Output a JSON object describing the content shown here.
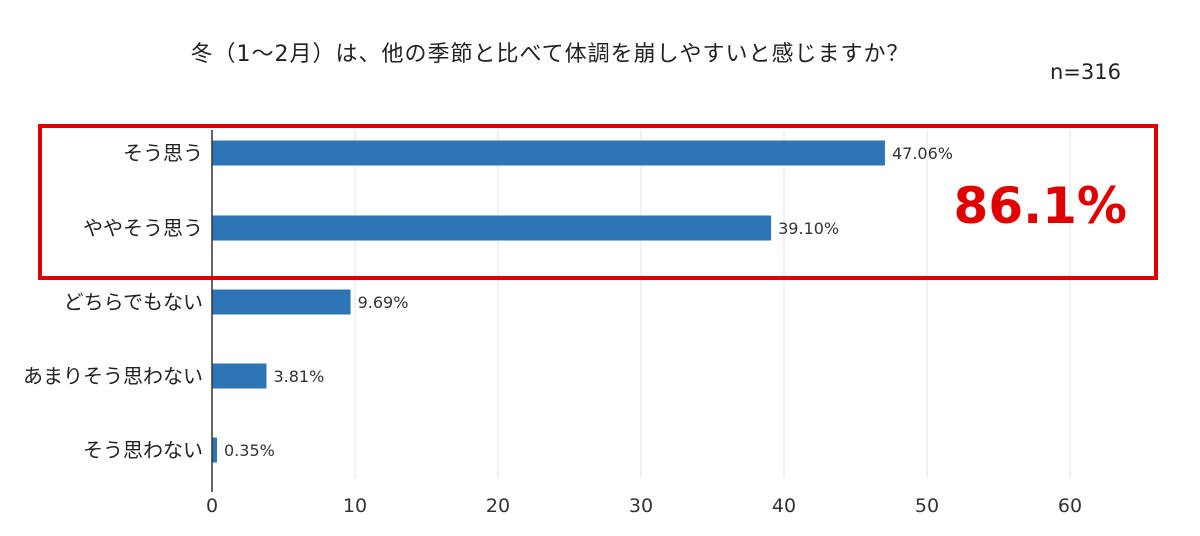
{
  "chart_data": {
    "type": "bar",
    "orientation": "horizontal",
    "title": "冬（1〜2月）は、他の季節と比べて体調を崩しやすいと感じますか？",
    "note": "n=316",
    "categories": [
      "そう思う",
      "ややそう思う",
      "どちらでもない",
      "あまりそう思わない",
      "そう思わない"
    ],
    "values": [
      47.06,
      39.1,
      9.69,
      3.81,
      0.35
    ],
    "value_labels": [
      "47.06%",
      "39.10%",
      "9.69%",
      "3.81%",
      "0.35%"
    ],
    "xlim": [
      0,
      60
    ],
    "xticks": [
      0,
      10,
      20,
      30,
      40,
      50,
      60
    ],
    "grid": true,
    "bar_color": "#2e75b6",
    "highlight": {
      "categories": [
        "そう思う",
        "ややそう思う"
      ],
      "label": "86.1%",
      "color": "#e00000"
    }
  }
}
